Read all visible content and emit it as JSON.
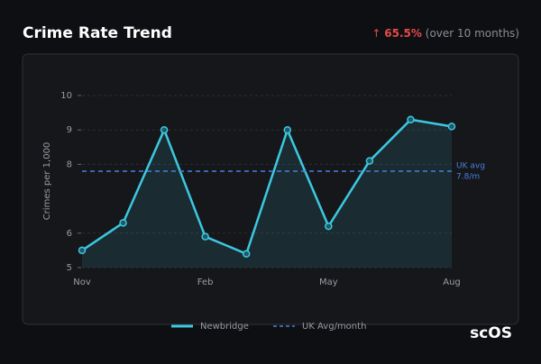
{
  "header": {
    "title": "Crime Rate Trend",
    "arrow": "↑",
    "change": "65.5%",
    "period": "(over 10 months)"
  },
  "chart_data": {
    "type": "line",
    "y_label": "Crimes per 1,000",
    "categories": [
      "Nov",
      null,
      null,
      "Feb",
      null,
      null,
      "May",
      null,
      null,
      "Aug"
    ],
    "series": [
      {
        "name": "Newbridge",
        "color": "#3cc8e0",
        "values": [
          5.5,
          6.3,
          9.0,
          5.9,
          5.4,
          9.0,
          6.2,
          8.1,
          9.3,
          9.1
        ]
      }
    ],
    "reference_line": {
      "name": "UK Avg/month",
      "color": "#4a7fe0",
      "value": 7.8,
      "label": "UK avg",
      "value_label": "7.8/m"
    },
    "ylim": [
      5,
      10
    ],
    "yticks": [
      5,
      6,
      8,
      9,
      10
    ],
    "grid": true
  },
  "watermark": "scOS"
}
